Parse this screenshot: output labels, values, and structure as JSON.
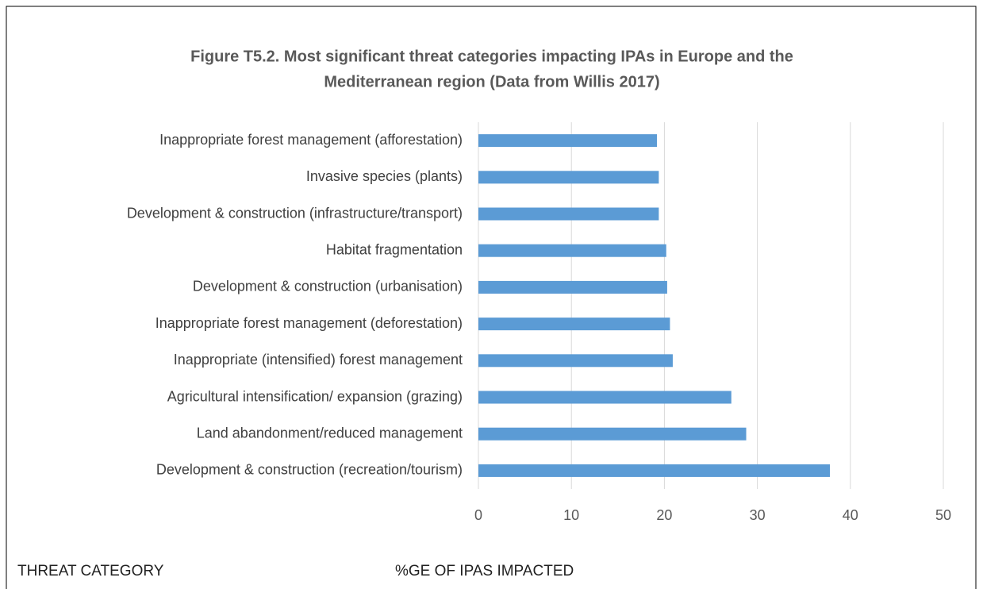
{
  "chart_data": {
    "type": "bar",
    "orientation": "horizontal",
    "title": [
      "Figure T5.2. Most significant threat categories impacting IPAs in Europe and the",
      "Mediterranean region (Data from Willis 2017)"
    ],
    "categories": [
      "Inappropriate forest management (afforestation)",
      "Invasive species (plants)",
      "Development & construction (infrastructure/transport)",
      "Habitat fragmentation",
      "Development & construction (urbanisation)",
      "Inappropriate forest management (deforestation)",
      "Inappropriate (intensified) forest management",
      "Agricultural intensification/ expansion (grazing)",
      "Land abandonment/reduced management",
      "Development & construction (recreation/tourism)"
    ],
    "values": [
      19.2,
      19.4,
      19.4,
      20.2,
      20.3,
      20.6,
      20.9,
      27.2,
      28.8,
      37.8
    ],
    "color": "#5b9bd5",
    "xlim": [
      0,
      50
    ],
    "xticks": [
      0,
      10,
      20,
      30,
      40,
      50
    ],
    "grid": true
  },
  "document_text": [
    "THREAT CATEGORY",
    "%GE OF IPAS IMPACTED"
  ]
}
